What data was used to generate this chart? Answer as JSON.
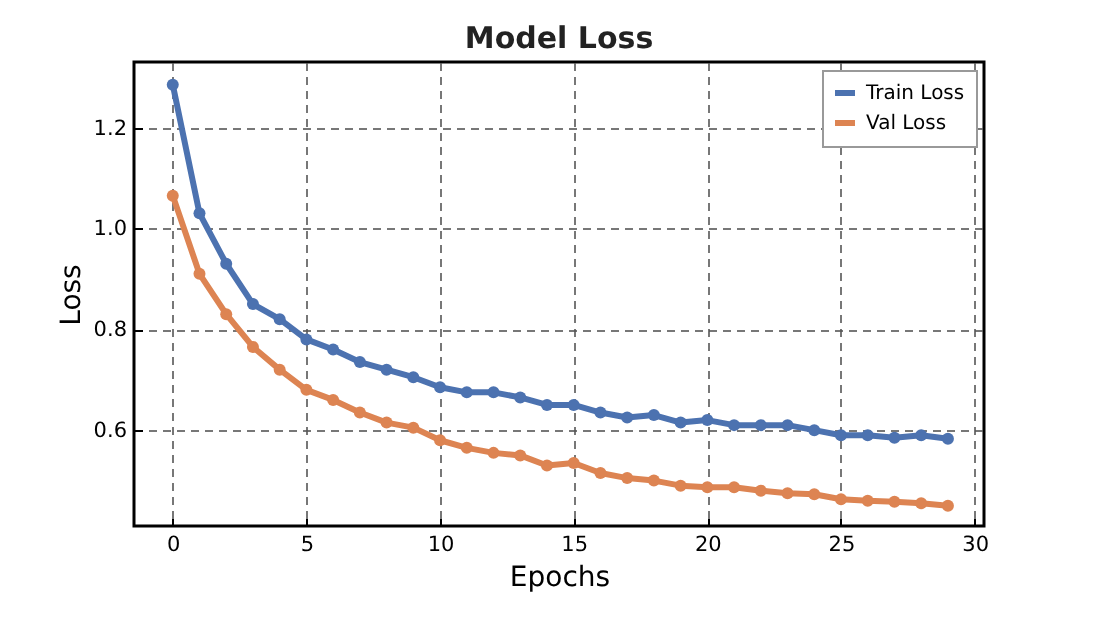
{
  "chart_data": {
    "type": "line",
    "title": "Model Loss",
    "xlabel": "Epochs",
    "ylabel": "Loss",
    "x": [
      0,
      1,
      2,
      3,
      4,
      5,
      6,
      7,
      8,
      9,
      10,
      11,
      12,
      13,
      14,
      15,
      16,
      17,
      18,
      19,
      20,
      21,
      22,
      23,
      24,
      25,
      26,
      27,
      28,
      29
    ],
    "series": [
      {
        "name": "Train Loss",
        "color": "#4c72b0",
        "values": [
          1.285,
          1.03,
          0.93,
          0.85,
          0.82,
          0.78,
          0.76,
          0.735,
          0.72,
          0.705,
          0.685,
          0.675,
          0.675,
          0.665,
          0.65,
          0.65,
          0.635,
          0.625,
          0.63,
          0.615,
          0.62,
          0.61,
          0.61,
          0.61,
          0.6,
          0.59,
          0.59,
          0.585,
          0.59,
          0.583
        ]
      },
      {
        "name": "Val Loss",
        "color": "#dd8452",
        "values": [
          1.065,
          0.91,
          0.83,
          0.765,
          0.72,
          0.68,
          0.66,
          0.635,
          0.615,
          0.605,
          0.58,
          0.565,
          0.555,
          0.55,
          0.53,
          0.535,
          0.515,
          0.505,
          0.5,
          0.49,
          0.487,
          0.487,
          0.48,
          0.475,
          0.473,
          0.463,
          0.46,
          0.458,
          0.455,
          0.45
        ]
      }
    ],
    "xlim": [
      -1.45,
      30.35
    ],
    "xticks": [
      0,
      5,
      10,
      15,
      20,
      25,
      30
    ],
    "ylim": [
      0.41,
      1.33
    ],
    "yticks": [
      0.6,
      0.8,
      {
        "value": 1,
        "label": "1.0"
      },
      1.2
    ],
    "grid": true,
    "legend": "top right",
    "marker": "circle",
    "line_style": "solid"
  }
}
